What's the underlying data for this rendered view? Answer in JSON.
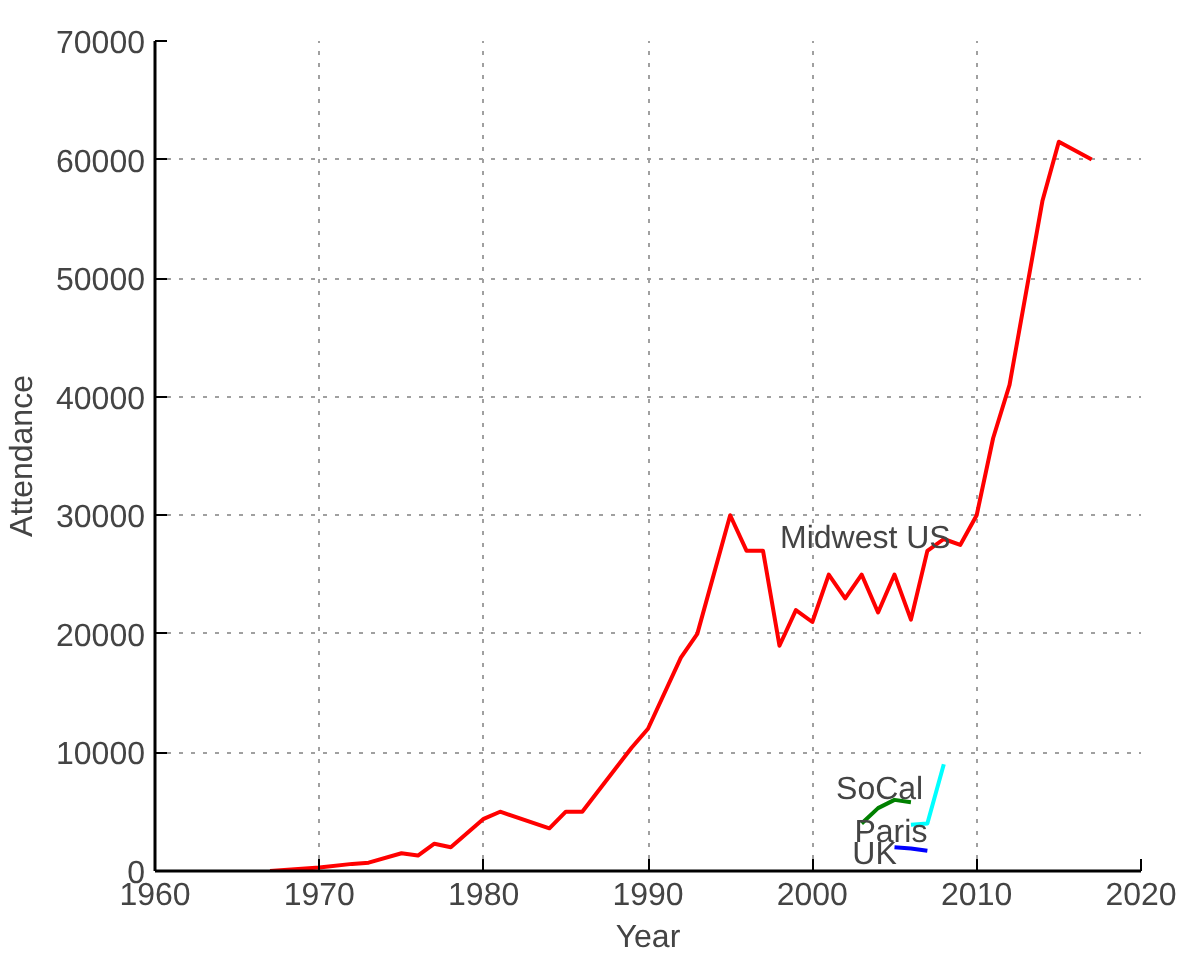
{
  "chart_data": {
    "type": "line",
    "xlabel": "Year",
    "ylabel": "Attendance",
    "xlim": [
      1960,
      2020
    ],
    "xticks": [
      1960,
      1970,
      1980,
      1990,
      2000,
      2010,
      2020
    ],
    "ylim": [
      0,
      70000
    ],
    "yticks": [
      0,
      10000,
      20000,
      30000,
      40000,
      50000,
      60000,
      70000
    ],
    "grid": true,
    "marker": "none",
    "line_style": "solid",
    "series": [
      {
        "name": "Midwest US",
        "color": "#ff0000",
        "x": [
          1967,
          1970,
          1972,
          1973,
          1975,
          1976,
          1977,
          1978,
          1980,
          1981,
          1984,
          1985,
          1986,
          1989,
          1990,
          1992,
          1993,
          1995,
          1996,
          1997,
          1998,
          1999,
          2000,
          2001,
          2002,
          2003,
          2004,
          2005,
          2006,
          2007,
          2008,
          2009,
          2010,
          2011,
          2012,
          2014,
          2015,
          2017
        ],
        "values": [
          0,
          300,
          600,
          700,
          1500,
          1300,
          2300,
          2000,
          4400,
          5000,
          3600,
          5000,
          5000,
          10400,
          12000,
          18000,
          20000,
          30000,
          27000,
          27000,
          19000,
          22000,
          21000,
          25000,
          23000,
          25000,
          21800,
          25000,
          21200,
          27000,
          28000,
          27500,
          30000,
          36500,
          41000,
          56500,
          61500,
          60000
        ]
      },
      {
        "name": "SoCal",
        "color": "#008000",
        "x": [
          2003,
          2004,
          2005,
          2006
        ],
        "values": [
          4000,
          5300,
          6000,
          5800
        ]
      },
      {
        "name": "Paris",
        "color": "#00ffff",
        "x": [
          2006,
          2007,
          2008
        ],
        "values": [
          3900,
          4000,
          9000
        ]
      },
      {
        "name": "UK",
        "color": "#0000ff",
        "x": [
          2005,
          2006,
          2007
        ],
        "values": [
          2000,
          1900,
          1700
        ]
      }
    ]
  }
}
